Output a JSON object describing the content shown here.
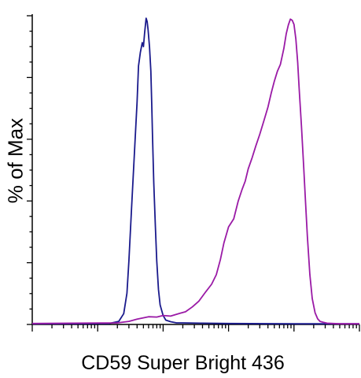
{
  "chart_data": {
    "type": "line",
    "title": "",
    "xlabel": "CD59 Super Bright 436",
    "ylabel": "% of Max",
    "x_scale": "log",
    "xlim": [
      100,
      10000000
    ],
    "ylim": [
      0,
      100
    ],
    "grid": false,
    "legend": "none",
    "series": [
      {
        "color": "#1a1a8c",
        "x": [
          100,
          1500,
          2100,
          2500,
          2800,
          3000,
          3300,
          3700,
          4000,
          4200,
          4500,
          4800,
          5000,
          5200,
          5500,
          5700,
          5900,
          6200,
          6500,
          6700,
          6900,
          7200,
          7600,
          8000,
          8500,
          9000,
          10000,
          11000,
          13000,
          16000,
          20000,
          40000,
          100000,
          1000000,
          10000000
        ],
        "y": [
          0.2,
          0.3,
          1.0,
          3.5,
          10.1,
          20.6,
          37.8,
          58.4,
          72.1,
          83.7,
          88.2,
          91.3,
          90.0,
          94.2,
          99.2,
          98.1,
          95.4,
          89.9,
          82.1,
          71.7,
          60.2,
          46.0,
          32.1,
          20.6,
          11.3,
          6.3,
          2.9,
          1.4,
          0.9,
          0.5,
          0.5,
          0.4,
          0.3,
          0.2,
          0.2
        ]
      },
      {
        "color": "#9a1aa6",
        "x": [
          100,
          2000,
          3000,
          4000,
          6000,
          8000,
          10000,
          13000,
          18000,
          22000,
          28000,
          35000,
          45000,
          55000,
          65000,
          75000,
          85000,
          100000,
          120000,
          140000,
          160000,
          180000,
          200000,
          230000,
          260000,
          300000,
          350000,
          400000,
          450000,
          500000,
          560000,
          620000,
          700000,
          760000,
          820000,
          880000,
          940000,
          1000000,
          1070000,
          1140000,
          1200000,
          1300000,
          1400000,
          1500000,
          1600000,
          1750000,
          1900000,
          2100000,
          2300000,
          2500000,
          2800000,
          3200000,
          4000000,
          5000000,
          10000000
        ],
        "y": [
          0.3,
          0.5,
          1.0,
          1.7,
          2.5,
          2.4,
          2.9,
          2.7,
          3.6,
          4.1,
          5.7,
          7.5,
          10.6,
          13.0,
          16.1,
          21.0,
          26.4,
          31.6,
          34.2,
          39.9,
          43.6,
          46.4,
          50.4,
          54.1,
          57.7,
          61.6,
          66.3,
          70.4,
          75.0,
          78.8,
          82.1,
          84.2,
          89.4,
          94.1,
          97.0,
          98.9,
          98.5,
          97.2,
          92.4,
          84.9,
          76.3,
          64.2,
          51.7,
          39.5,
          28.6,
          16.1,
          8.4,
          3.8,
          1.8,
          1.0,
          0.7,
          0.4,
          0.3,
          0.2,
          0.2
        ]
      }
    ]
  }
}
